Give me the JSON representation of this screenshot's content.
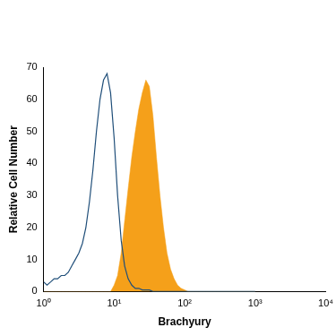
{
  "chart_data": {
    "type": "line",
    "x_label": "Brachyury",
    "y_label": "Relative Cell Number",
    "log": "x",
    "grid": false,
    "xlim": [
      1,
      10000
    ],
    "xticks": [
      {
        "value": 1,
        "label": "10⁰"
      },
      {
        "value": 10,
        "label": "10¹"
      },
      {
        "value": 100,
        "label": "10²"
      },
      {
        "value": 1000,
        "label": "10³"
      },
      {
        "value": 10000,
        "label": "10⁴"
      }
    ],
    "ylim": [
      0,
      70
    ],
    "yticks": [
      0,
      10,
      20,
      30,
      40,
      50,
      60,
      70
    ],
    "x": [
      1,
      1.12,
      1.26,
      1.41,
      1.58,
      1.78,
      2,
      2.24,
      2.51,
      2.82,
      3.16,
      3.55,
      3.98,
      4.47,
      5.01,
      5.62,
      6.31,
      7.08,
      7.94,
      8.91,
      10,
      11.2,
      12.6,
      14.1,
      15.8,
      17.8,
      20,
      22.4,
      25.1,
      28.2,
      31.6,
      35.5,
      39.8,
      44.7,
      50.1,
      56.2,
      63.1,
      70.8,
      79.4,
      89.1,
      100,
      112,
      126,
      141,
      158,
      178,
      200,
      224,
      251,
      282,
      316,
      1000
    ],
    "series": [
      {
        "type": "line",
        "color": "#1f4e79",
        "values": [
          3,
          2,
          3,
          4,
          4,
          5,
          5,
          6,
          8,
          10,
          12,
          15,
          20,
          28,
          38,
          50,
          60,
          66,
          68,
          62,
          48,
          30,
          16,
          8,
          4,
          2,
          1,
          1,
          0.5,
          0.5,
          0.5,
          0,
          0,
          0,
          0,
          0,
          0,
          0,
          0,
          0,
          0,
          0,
          0,
          0,
          0,
          0,
          0,
          0,
          0,
          0,
          0,
          0
        ]
      },
      {
        "type": "area",
        "color": "#f5a01a",
        "values": [
          0,
          0,
          0,
          0,
          0,
          0,
          0,
          0,
          0,
          0,
          0,
          0,
          0,
          0,
          0,
          0,
          0,
          0,
          0,
          0,
          2,
          5,
          12,
          22,
          32,
          42,
          50,
          57,
          62,
          66,
          64,
          55,
          42,
          30,
          20,
          12,
          7,
          4,
          2,
          1,
          0.5,
          0,
          0,
          0,
          0,
          0,
          0,
          0,
          0,
          0,
          0,
          0
        ]
      }
    ]
  }
}
